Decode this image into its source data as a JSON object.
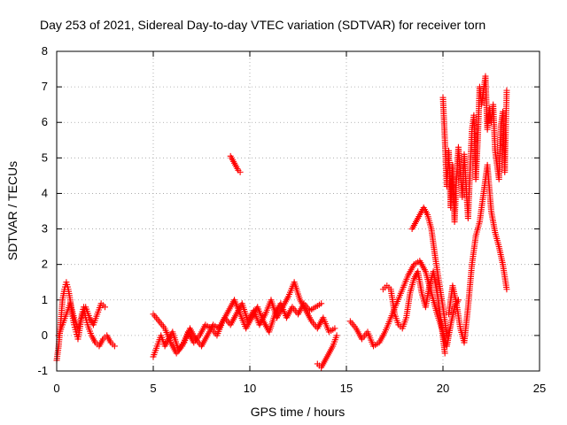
{
  "chart_data": {
    "type": "scatter",
    "title": "Day 253 of 2021, Sidereal Day-to-day VTEC variation (SDTVAR) for receiver torn",
    "xlabel": "GPS time / hours",
    "ylabel": "SDTVAR / TECUs",
    "xlim": [
      0,
      25
    ],
    "ylim": [
      -1,
      8
    ],
    "xticks": [
      "0",
      "5",
      "10",
      "15",
      "20",
      "25"
    ],
    "yticks": [
      "-1",
      "0",
      "1",
      "2",
      "3",
      "4",
      "5",
      "6",
      "7",
      "8"
    ],
    "grid": true,
    "marker": "+",
    "series": [
      {
        "name": "SDTVAR",
        "color": "#ff0000",
        "segments": [
          {
            "x": [
              0.0,
              0.1,
              0.2,
              0.3,
              0.4,
              0.5,
              0.6,
              0.7,
              0.8,
              0.9,
              1.0,
              1.1,
              1.2,
              1.3,
              1.4,
              1.5,
              1.6,
              1.8,
              2.0,
              2.2,
              2.4,
              2.6,
              2.8,
              3.0
            ],
            "y": [
              -0.7,
              -0.3,
              0.3,
              1.0,
              1.3,
              1.5,
              1.3,
              1.0,
              0.6,
              0.3,
              0.1,
              -0.1,
              0.2,
              0.6,
              0.8,
              0.5,
              0.3,
              0.0,
              -0.2,
              -0.3,
              -0.1,
              0.0,
              -0.2,
              -0.3
            ]
          },
          {
            "x": [
              0.1,
              0.3,
              0.5,
              0.7,
              0.9,
              1.1,
              1.3,
              1.5,
              1.7,
              1.9,
              2.1,
              2.3,
              2.5
            ],
            "y": [
              0.0,
              0.3,
              0.6,
              0.9,
              0.5,
              0.2,
              0.5,
              0.8,
              0.5,
              0.3,
              0.6,
              0.9,
              0.8
            ]
          },
          {
            "x": [
              9.0,
              9.1,
              9.2,
              9.3,
              9.4,
              9.5
            ],
            "y": [
              5.05,
              4.95,
              4.85,
              4.75,
              4.65,
              4.6
            ]
          },
          {
            "x": [
              5.0,
              5.2,
              5.4,
              5.6,
              5.8,
              6.0,
              6.3,
              6.6,
              6.9,
              7.2,
              7.5,
              7.8,
              8.1,
              8.4,
              8.7,
              9.0,
              9.3,
              9.6,
              9.9,
              10.2,
              10.5,
              10.8,
              11.1,
              11.4,
              11.7,
              12.0,
              12.3,
              12.6,
              12.9,
              13.2,
              13.5,
              13.8,
              14.1,
              14.4
            ],
            "y": [
              -0.6,
              -0.3,
              0.0,
              -0.3,
              -0.1,
              0.1,
              -0.4,
              -0.2,
              0.2,
              -0.1,
              -0.3,
              0.0,
              0.3,
              0.2,
              0.5,
              0.3,
              0.6,
              0.9,
              0.4,
              0.7,
              0.3,
              0.6,
              1.0,
              0.5,
              0.8,
              1.1,
              1.5,
              1.0,
              0.7,
              0.4,
              0.2,
              0.5,
              0.1,
              0.2
            ]
          },
          {
            "x": [
              5.0,
              5.3,
              5.6,
              5.9,
              6.2,
              6.5,
              6.8,
              7.1,
              7.4,
              7.7,
              8.0,
              8.3,
              8.6,
              8.9,
              9.2,
              9.5,
              9.8,
              10.1,
              10.4,
              10.7,
              11.0,
              11.3,
              11.6,
              11.9,
              12.2,
              12.5,
              12.8,
              13.1,
              13.4,
              13.7
            ],
            "y": [
              0.6,
              0.4,
              0.2,
              -0.2,
              -0.5,
              -0.3,
              0.1,
              -0.2,
              0.0,
              0.3,
              0.2,
              0.0,
              0.4,
              0.7,
              1.0,
              0.6,
              0.2,
              0.5,
              0.8,
              0.4,
              0.1,
              0.6,
              0.9,
              0.5,
              0.8,
              0.6,
              0.9,
              0.7,
              0.8,
              0.9
            ]
          },
          {
            "x": [
              13.5,
              13.7,
              13.9,
              14.1,
              14.3,
              14.5
            ],
            "y": [
              -0.8,
              -0.9,
              -0.7,
              -0.5,
              -0.3,
              0.0
            ]
          },
          {
            "x": [
              15.2,
              15.5,
              15.8,
              16.1,
              16.4,
              16.7,
              17.0,
              17.3,
              17.6,
              17.9,
              18.2,
              18.5,
              18.8,
              19.1,
              19.4,
              19.7,
              20.0,
              20.2,
              20.4,
              20.6,
              20.8
            ],
            "y": [
              0.4,
              0.2,
              -0.1,
              0.1,
              -0.3,
              -0.2,
              0.1,
              0.5,
              0.9,
              1.3,
              1.7,
              2.0,
              2.1,
              1.8,
              1.2,
              0.6,
              0.1,
              -0.3,
              0.3,
              0.8,
              1.0
            ]
          },
          {
            "x": [
              16.9,
              17.1,
              17.3,
              17.5,
              17.7,
              17.9,
              18.1,
              18.3,
              18.5,
              18.7,
              18.9,
              19.1,
              19.3,
              19.5,
              19.7,
              19.9,
              20.1
            ],
            "y": [
              1.3,
              1.4,
              1.3,
              0.6,
              0.3,
              0.2,
              0.5,
              1.2,
              1.6,
              1.8,
              1.2,
              0.8,
              1.4,
              1.8,
              1.2,
              0.4,
              -0.5
            ]
          },
          {
            "x": [
              18.4,
              18.6,
              18.8,
              19.0,
              19.2,
              19.4,
              19.6,
              19.8,
              20.0,
              20.2
            ],
            "y": [
              3.0,
              3.2,
              3.4,
              3.6,
              3.4,
              3.0,
              2.2,
              1.5,
              0.8,
              0.0
            ]
          },
          {
            "x": [
              20.0,
              20.1,
              20.2,
              20.3,
              20.4,
              20.5,
              20.6,
              20.7,
              20.8,
              20.9,
              21.0,
              21.1,
              21.2,
              21.3,
              21.4,
              21.5,
              21.6,
              21.7,
              21.8,
              21.9,
              22.0,
              22.1,
              22.2,
              22.3,
              22.4,
              22.5,
              22.6,
              22.7,
              22.8,
              22.9,
              23.0,
              23.1,
              23.2,
              23.3
            ],
            "y": [
              6.7,
              5.5,
              4.2,
              5.2,
              3.6,
              4.8,
              3.2,
              4.4,
              5.3,
              4.6,
              3.9,
              5.1,
              4.2,
              3.3,
              4.6,
              5.8,
              6.2,
              4.4,
              5.5,
              7.0,
              6.5,
              6.9,
              7.3,
              5.8,
              6.4,
              6.0,
              6.5,
              5.2,
              4.8,
              4.4,
              5.9,
              6.3,
              4.6,
              6.9
            ]
          },
          {
            "x": [
              20.3,
              20.5,
              20.7,
              20.9,
              21.1,
              21.3,
              21.5,
              21.7,
              21.9,
              22.1,
              22.3,
              22.5,
              22.7,
              22.9,
              23.1,
              23.3
            ],
            "y": [
              0.6,
              1.4,
              0.9,
              0.2,
              -0.2,
              0.8,
              2.0,
              2.8,
              3.2,
              4.0,
              4.8,
              3.5,
              2.9,
              2.5,
              2.0,
              1.3
            ]
          }
        ]
      }
    ]
  }
}
